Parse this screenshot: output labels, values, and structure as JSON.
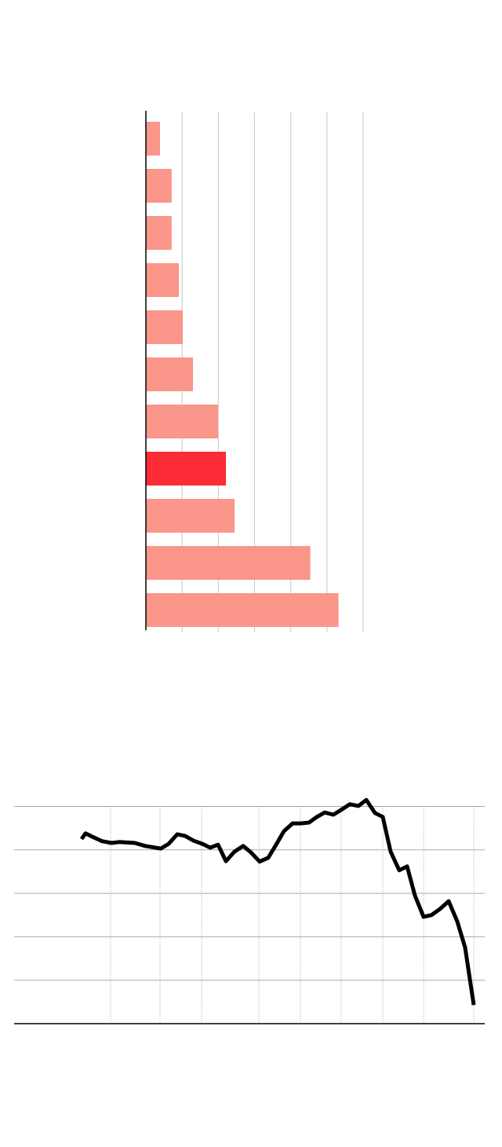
{
  "chart_data": [
    {
      "type": "barh",
      "categories": [
        null,
        null,
        null,
        null,
        null,
        null,
        null,
        null,
        null,
        null,
        null
      ],
      "values": [
        0.39,
        0.71,
        0.71,
        0.91,
        1.02,
        1.3,
        1.99,
        2.21,
        2.45,
        4.54,
        5.32
      ],
      "colors": [
        "#fa968a",
        "#fa968a",
        "#fa968a",
        "#fa968a",
        "#fa968a",
        "#fa968a",
        "#fa968a",
        "#fc2c37",
        "#fa968a",
        "#fa968a",
        "#fa968a"
      ],
      "xlim": [
        0,
        6
      ],
      "xticks": [
        0,
        1,
        2,
        3,
        4,
        5,
        6
      ],
      "grid": true
    },
    {
      "type": "line",
      "x": [
        86,
        91,
        100,
        112,
        124,
        134,
        154,
        167,
        187,
        197,
        208,
        218,
        229,
        240,
        250,
        260,
        270,
        281,
        292,
        302,
        313,
        324,
        334,
        344,
        355,
        365,
        376,
        386,
        396,
        407,
        417,
        428,
        439,
        449,
        460,
        470,
        480,
        491,
        501,
        511,
        522,
        532,
        543,
        554,
        565,
        575,
        586
      ],
      "values": [
        4.25,
        4.38,
        4.3,
        4.2,
        4.16,
        4.18,
        4.16,
        4.09,
        4.03,
        4.14,
        4.36,
        4.32,
        4.21,
        4.14,
        4.05,
        4.12,
        3.74,
        3.96,
        4.09,
        3.94,
        3.73,
        3.82,
        4.12,
        4.43,
        4.61,
        4.61,
        4.63,
        4.76,
        4.86,
        4.81,
        4.92,
        5.05,
        5.01,
        5.15,
        4.85,
        4.76,
        3.96,
        3.53,
        3.62,
        2.95,
        2.46,
        2.5,
        2.64,
        2.82,
        2.35,
        1.75,
        0.43
      ],
      "color": "#000000",
      "xlim": [
        0,
        600
      ],
      "xticks": [
        123,
        186,
        239,
        312,
        365,
        417,
        470,
        522,
        586
      ],
      "ylim": [
        0,
        5.5
      ],
      "yticks": [
        0,
        1,
        2,
        3,
        4,
        5
      ],
      "grid": true
    }
  ]
}
